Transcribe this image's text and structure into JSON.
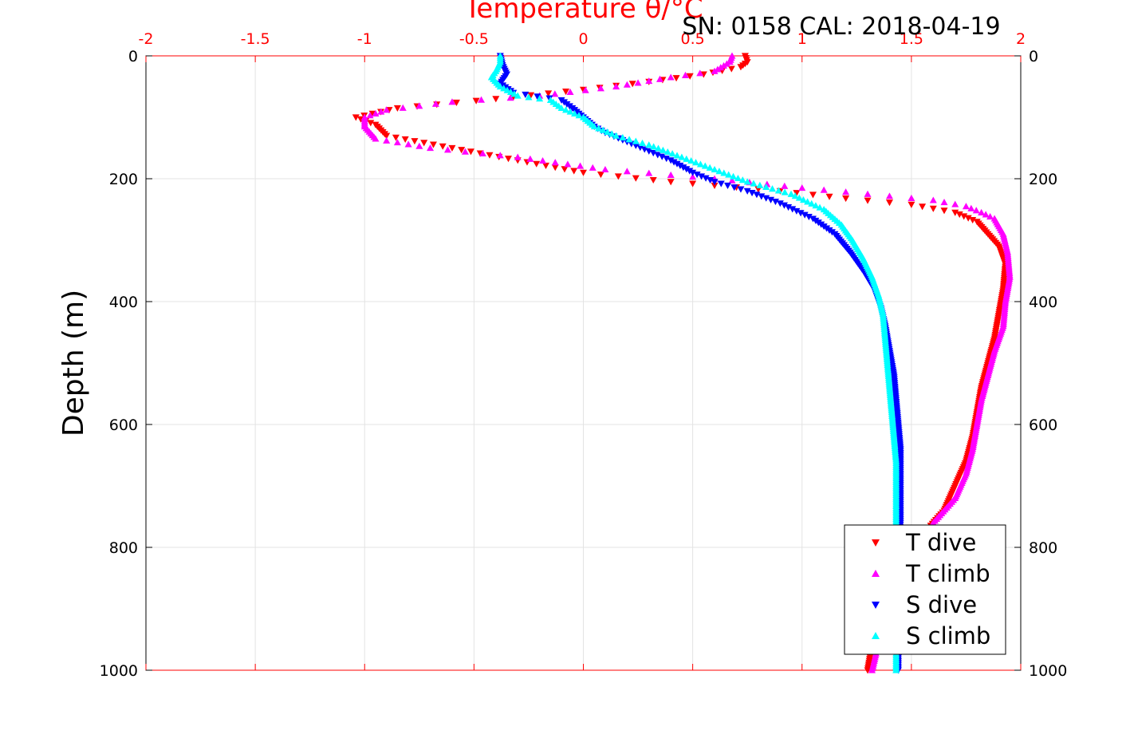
{
  "chart_data": {
    "type": "scatter",
    "title": "SN: 0158  CAL: 2018-04-19",
    "xlabel": "Temperature θ/°C",
    "ylabel": "Depth (m)",
    "xlim": [
      -2,
      2
    ],
    "ylim": [
      1000,
      0
    ],
    "y_reversed": true,
    "xticks": [
      "-2",
      "-1.5",
      "-1",
      "-0.5",
      "0",
      "0.5",
      "1",
      "1.5",
      "2"
    ],
    "yticks": [
      "0",
      "200",
      "400",
      "600",
      "800",
      "1000"
    ],
    "grid": true,
    "legend_position": "bottom-right",
    "colors": {
      "t_dive": "#ff0000",
      "t_climb": "#ff00ff",
      "s_dive": "#0000ff",
      "s_climb": "#00ffff",
      "temperature_axis": "#ff0000"
    },
    "series": [
      {
        "name": "T dive",
        "marker": "triangle-down",
        "color": "#ff0000",
        "points": [
          [
            0.74,
            0
          ],
          [
            0.75,
            10
          ],
          [
            0.72,
            18
          ],
          [
            0.55,
            30
          ],
          [
            0.3,
            42
          ],
          [
            0.0,
            55
          ],
          [
            -0.4,
            70
          ],
          [
            -0.85,
            85
          ],
          [
            -1.04,
            100
          ],
          [
            -0.95,
            112
          ],
          [
            -0.9,
            130
          ],
          [
            -0.6,
            150
          ],
          [
            -0.3,
            170
          ],
          [
            0.0,
            190
          ],
          [
            0.4,
            205
          ],
          [
            0.9,
            220
          ],
          [
            1.2,
            232
          ],
          [
            1.5,
            242
          ],
          [
            1.7,
            255
          ],
          [
            1.8,
            270
          ],
          [
            1.85,
            290
          ],
          [
            1.9,
            310
          ],
          [
            1.93,
            340
          ],
          [
            1.92,
            380
          ],
          [
            1.9,
            420
          ],
          [
            1.88,
            460
          ],
          [
            1.85,
            500
          ],
          [
            1.82,
            540
          ],
          [
            1.8,
            580
          ],
          [
            1.78,
            620
          ],
          [
            1.75,
            660
          ],
          [
            1.7,
            700
          ],
          [
            1.65,
            740
          ],
          [
            1.55,
            780
          ],
          [
            1.45,
            840
          ],
          [
            1.38,
            900
          ],
          [
            1.32,
            960
          ],
          [
            1.3,
            1000
          ]
        ]
      },
      {
        "name": "T climb",
        "marker": "triangle-up",
        "color": "#ff00ff",
        "points": [
          [
            0.68,
            0
          ],
          [
            0.67,
            10
          ],
          [
            0.6,
            25
          ],
          [
            0.4,
            35
          ],
          [
            0.15,
            50
          ],
          [
            -0.2,
            65
          ],
          [
            -0.6,
            75
          ],
          [
            -0.9,
            88
          ],
          [
            -1.0,
            100
          ],
          [
            -1.0,
            115
          ],
          [
            -0.95,
            135
          ],
          [
            -0.7,
            150
          ],
          [
            -0.3,
            165
          ],
          [
            0.1,
            185
          ],
          [
            0.6,
            200
          ],
          [
            1.0,
            215
          ],
          [
            1.3,
            225
          ],
          [
            1.6,
            235
          ],
          [
            1.75,
            245
          ],
          [
            1.82,
            255
          ],
          [
            1.88,
            265
          ],
          [
            1.92,
            290
          ],
          [
            1.94,
            320
          ],
          [
            1.95,
            360
          ],
          [
            1.93,
            400
          ],
          [
            1.92,
            440
          ],
          [
            1.88,
            480
          ],
          [
            1.85,
            520
          ],
          [
            1.82,
            560
          ],
          [
            1.8,
            600
          ],
          [
            1.78,
            640
          ],
          [
            1.75,
            680
          ],
          [
            1.7,
            720
          ],
          [
            1.6,
            760
          ],
          [
            1.5,
            820
          ],
          [
            1.42,
            880
          ],
          [
            1.36,
            940
          ],
          [
            1.32,
            1000
          ]
        ]
      },
      {
        "name": "S dive",
        "marker": "triangle-down",
        "color": "#0000ff",
        "points": [
          [
            -0.38,
            0
          ],
          [
            -0.37,
            15
          ],
          [
            -0.35,
            30
          ],
          [
            -0.38,
            45
          ],
          [
            -0.32,
            60
          ],
          [
            -0.1,
            72
          ],
          [
            -0.05,
            85
          ],
          [
            0.0,
            100
          ],
          [
            0.05,
            115
          ],
          [
            0.1,
            125
          ],
          [
            0.2,
            140
          ],
          [
            0.3,
            155
          ],
          [
            0.4,
            170
          ],
          [
            0.5,
            190
          ],
          [
            0.6,
            205
          ],
          [
            0.75,
            220
          ],
          [
            0.9,
            240
          ],
          [
            1.05,
            265
          ],
          [
            1.15,
            290
          ],
          [
            1.22,
            320
          ],
          [
            1.28,
            350
          ],
          [
            1.33,
            380
          ],
          [
            1.36,
            410
          ],
          [
            1.38,
            440
          ],
          [
            1.4,
            480
          ],
          [
            1.42,
            520
          ],
          [
            1.43,
            560
          ],
          [
            1.44,
            600
          ],
          [
            1.45,
            640
          ],
          [
            1.45,
            680
          ],
          [
            1.45,
            720
          ],
          [
            1.45,
            760
          ],
          [
            1.44,
            800
          ],
          [
            1.44,
            860
          ],
          [
            1.44,
            920
          ],
          [
            1.44,
            1000
          ]
        ]
      },
      {
        "name": "S climb",
        "marker": "triangle-up",
        "color": "#00ffff",
        "points": [
          [
            -0.38,
            0
          ],
          [
            -0.38,
            10
          ],
          [
            -0.4,
            25
          ],
          [
            -0.42,
            35
          ],
          [
            -0.38,
            50
          ],
          [
            -0.3,
            65
          ],
          [
            -0.15,
            72
          ],
          [
            -0.1,
            85
          ],
          [
            0.0,
            100
          ],
          [
            0.05,
            115
          ],
          [
            0.15,
            130
          ],
          [
            0.3,
            145
          ],
          [
            0.45,
            165
          ],
          [
            0.6,
            185
          ],
          [
            0.75,
            205
          ],
          [
            0.95,
            225
          ],
          [
            1.1,
            250
          ],
          [
            1.18,
            275
          ],
          [
            1.23,
            300
          ],
          [
            1.28,
            330
          ],
          [
            1.32,
            360
          ],
          [
            1.35,
            390
          ],
          [
            1.37,
            420
          ],
          [
            1.38,
            460
          ],
          [
            1.39,
            500
          ],
          [
            1.4,
            540
          ],
          [
            1.41,
            580
          ],
          [
            1.42,
            620
          ],
          [
            1.43,
            660
          ],
          [
            1.43,
            700
          ],
          [
            1.43,
            760
          ],
          [
            1.43,
            820
          ],
          [
            1.43,
            880
          ],
          [
            1.43,
            940
          ],
          [
            1.43,
            1000
          ]
        ]
      }
    ]
  }
}
